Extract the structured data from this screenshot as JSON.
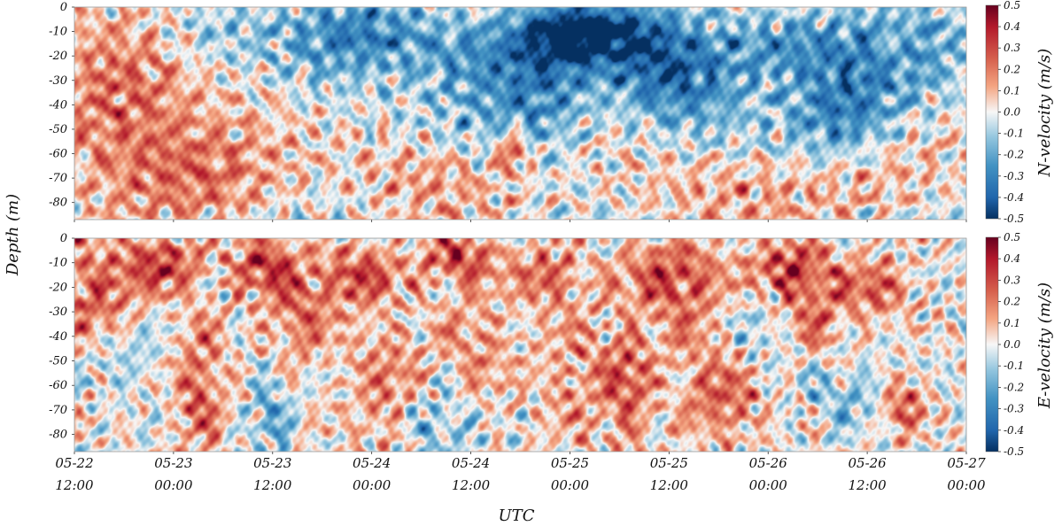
{
  "chart_data": {
    "type": "heatmap",
    "shared": {
      "ylabel": "Depth (m)",
      "xlabel": "UTC",
      "x_ticks": [
        {
          "date": "05-22",
          "time": "12:00"
        },
        {
          "date": "05-23",
          "time": "00:00"
        },
        {
          "date": "05-23",
          "time": "12:00"
        },
        {
          "date": "05-24",
          "time": "00:00"
        },
        {
          "date": "05-24",
          "time": "12:00"
        },
        {
          "date": "05-25",
          "time": "00:00"
        },
        {
          "date": "05-25",
          "time": "12:00"
        },
        {
          "date": "05-26",
          "time": "00:00"
        },
        {
          "date": "05-26",
          "time": "12:00"
        },
        {
          "date": "05-27",
          "time": "00:00"
        }
      ],
      "xlim": [
        "2023-05-22T12:00",
        "2023-05-27T00:00"
      ],
      "y_ticks": [
        0,
        -10,
        -20,
        -30,
        -40,
        -50,
        -60,
        -70,
        -80
      ],
      "ylim": [
        -87,
        0
      ],
      "colormap": "RdBu_r",
      "colors": {
        "min": "#053061",
        "mid": "#f7f7f7",
        "max": "#67001f"
      }
    },
    "panels": [
      {
        "variable": "N-velocity",
        "colorbar_label": "N-velocity (m/s)",
        "clim": [
          -0.5,
          0.5
        ],
        "colorbar_ticks": [
          "0.5",
          "0.4",
          "0.3",
          "0.2",
          "0.1",
          "0.0",
          "-0.1",
          "-0.2",
          "-0.3",
          "-0.4",
          "-0.5"
        ],
        "features": [
          {
            "t": 0.05,
            "z": -35,
            "v": 0.22,
            "st": 0.06,
            "sz": 18
          },
          {
            "t": 0.1,
            "z": -60,
            "v": 0.15,
            "st": 0.07,
            "sz": 15
          },
          {
            "t": 0.17,
            "z": -72,
            "v": 0.12,
            "st": 0.06,
            "sz": 12
          },
          {
            "t": 0.15,
            "z": -10,
            "v": -0.12,
            "st": 0.05,
            "sz": 10
          },
          {
            "t": 0.28,
            "z": -25,
            "v": -0.1,
            "st": 0.04,
            "sz": 16
          },
          {
            "t": 0.33,
            "z": -10,
            "v": -0.25,
            "st": 0.05,
            "sz": 10
          },
          {
            "t": 0.45,
            "z": -18,
            "v": -0.25,
            "st": 0.06,
            "sz": 12
          },
          {
            "t": 0.48,
            "z": -45,
            "v": -0.1,
            "st": 0.05,
            "sz": 15
          },
          {
            "t": 0.53,
            "z": -35,
            "v": -0.2,
            "st": 0.04,
            "sz": 15
          },
          {
            "t": 0.55,
            "z": -12,
            "v": -0.22,
            "st": 0.04,
            "sz": 10
          },
          {
            "t": 0.49,
            "z": -58,
            "v": 0.35,
            "st": 0.012,
            "sz": 6
          },
          {
            "t": 0.4,
            "z": -68,
            "v": 0.12,
            "st": 0.06,
            "sz": 10
          },
          {
            "t": 0.58,
            "z": -10,
            "v": -0.35,
            "st": 0.05,
            "sz": 8
          },
          {
            "t": 0.68,
            "z": -30,
            "v": -0.3,
            "st": 0.05,
            "sz": 15
          },
          {
            "t": 0.64,
            "z": -20,
            "v": -0.15,
            "st": 0.04,
            "sz": 14
          },
          {
            "t": 0.8,
            "z": -15,
            "v": -0.28,
            "st": 0.06,
            "sz": 10
          },
          {
            "t": 0.86,
            "z": -42,
            "v": -0.28,
            "st": 0.04,
            "sz": 15
          },
          {
            "t": 0.93,
            "z": -22,
            "v": -0.2,
            "st": 0.05,
            "sz": 18
          },
          {
            "t": 0.7,
            "z": -75,
            "v": 0.1,
            "st": 0.08,
            "sz": 10
          },
          {
            "t": 0.9,
            "z": -70,
            "v": 0.12,
            "st": 0.06,
            "sz": 12
          },
          {
            "t": 0.92,
            "z": -15,
            "v": 0.15,
            "st": 0.01,
            "sz": 6
          }
        ]
      },
      {
        "variable": "E-velocity",
        "colorbar_label": "E-velocity (m/s)",
        "clim": [
          -0.5,
          0.5
        ],
        "colorbar_ticks": [
          "0.5",
          "0.4",
          "0.3",
          "0.2",
          "0.1",
          "0.0",
          "-0.1",
          "-0.2",
          "-0.3",
          "-0.4",
          "-0.5"
        ],
        "features": [
          {
            "t": 0.02,
            "z": -22,
            "v": 0.25,
            "st": 0.04,
            "sz": 15
          },
          {
            "t": 0.1,
            "z": -10,
            "v": 0.3,
            "st": 0.03,
            "sz": 8
          },
          {
            "t": 0.14,
            "z": -60,
            "v": 0.25,
            "st": 0.02,
            "sz": 20
          },
          {
            "t": 0.06,
            "z": -45,
            "v": -0.12,
            "st": 0.03,
            "sz": 10
          },
          {
            "t": 0.21,
            "z": -10,
            "v": 0.3,
            "st": 0.025,
            "sz": 8
          },
          {
            "t": 0.25,
            "z": -30,
            "v": 0.22,
            "st": 0.03,
            "sz": 15
          },
          {
            "t": 0.22,
            "z": -70,
            "v": -0.18,
            "st": 0.015,
            "sz": 15
          },
          {
            "t": 0.32,
            "z": -15,
            "v": 0.3,
            "st": 0.03,
            "sz": 8
          },
          {
            "t": 0.35,
            "z": -60,
            "v": 0.18,
            "st": 0.03,
            "sz": 20
          },
          {
            "t": 0.43,
            "z": -8,
            "v": 0.3,
            "st": 0.03,
            "sz": 7
          },
          {
            "t": 0.41,
            "z": -75,
            "v": -0.2,
            "st": 0.03,
            "sz": 10
          },
          {
            "t": 0.45,
            "z": -45,
            "v": 0.15,
            "st": 0.03,
            "sz": 20
          },
          {
            "t": 0.53,
            "z": -15,
            "v": 0.25,
            "st": 0.025,
            "sz": 8
          },
          {
            "t": 0.56,
            "z": -55,
            "v": 0.15,
            "st": 0.03,
            "sz": 20
          },
          {
            "t": 0.62,
            "z": -60,
            "v": 0.25,
            "st": 0.02,
            "sz": 18
          },
          {
            "t": 0.67,
            "z": -15,
            "v": 0.3,
            "st": 0.04,
            "sz": 10
          },
          {
            "t": 0.69,
            "z": -40,
            "v": 0.12,
            "st": 0.03,
            "sz": 15
          },
          {
            "t": 0.73,
            "z": -65,
            "v": 0.25,
            "st": 0.03,
            "sz": 12
          },
          {
            "t": 0.8,
            "z": -12,
            "v": 0.3,
            "st": 0.03,
            "sz": 8
          },
          {
            "t": 0.83,
            "z": -30,
            "v": 0.2,
            "st": 0.03,
            "sz": 15
          },
          {
            "t": 0.9,
            "z": -20,
            "v": 0.25,
            "st": 0.025,
            "sz": 8
          },
          {
            "t": 0.93,
            "z": -68,
            "v": 0.28,
            "st": 0.015,
            "sz": 8
          },
          {
            "t": 0.86,
            "z": -62,
            "v": -0.15,
            "st": 0.03,
            "sz": 10
          },
          {
            "t": 0.77,
            "z": -40,
            "v": -0.1,
            "st": 0.03,
            "sz": 15
          }
        ]
      }
    ]
  }
}
